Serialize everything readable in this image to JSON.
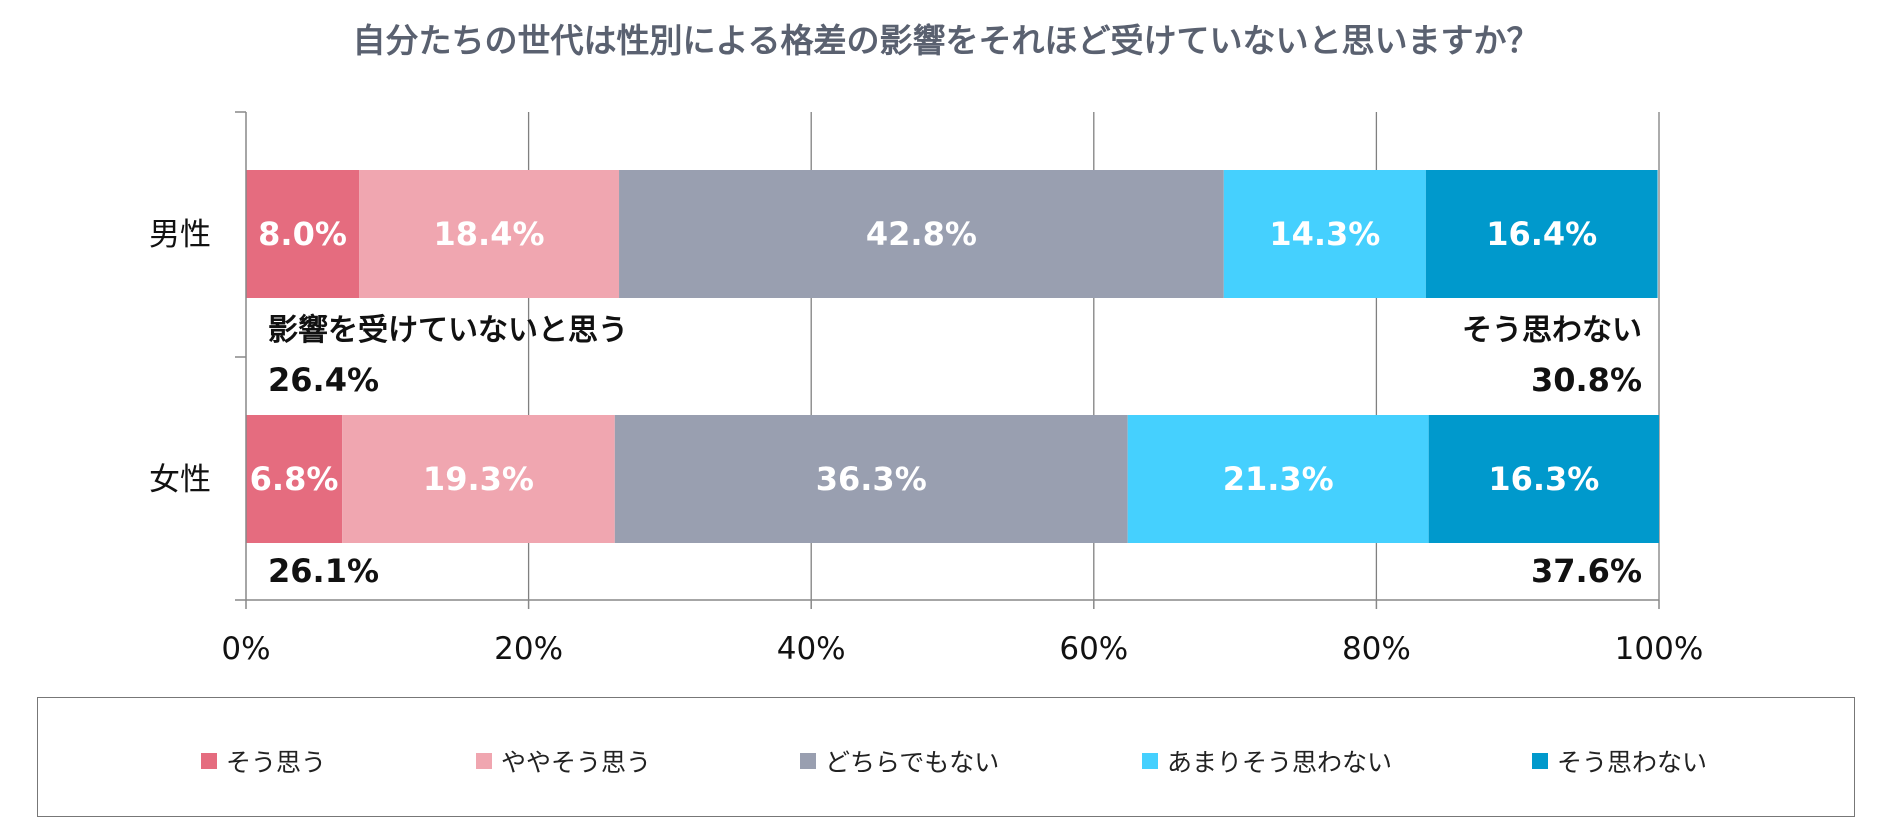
{
  "chart_data": {
    "type": "bar",
    "orientation": "horizontal",
    "stacked": true,
    "title": "自分たちの世代は性別による格差の影響をそれほど受けていないと思いますか？",
    "categories": [
      "男性",
      "女性"
    ],
    "series": [
      {
        "name": "そう思う",
        "color": "#e56c7f",
        "values": [
          8.0,
          6.8
        ],
        "labels": [
          "8.0%",
          "6.8%"
        ]
      },
      {
        "name": "ややそう思う",
        "color": "#f0a6b0",
        "values": [
          18.4,
          19.3
        ],
        "labels": [
          "18.4%",
          "19.3%"
        ]
      },
      {
        "name": "どちらでもない",
        "color": "#999fb0",
        "values": [
          42.8,
          36.3
        ],
        "labels": [
          "42.8%",
          "36.3%"
        ]
      },
      {
        "name": "あまりそう思わない",
        "color": "#45d0fe",
        "values": [
          14.3,
          21.3
        ],
        "labels": [
          "14.3%",
          "21.3%"
        ]
      },
      {
        "name": "そう思わない",
        "color": "#0099cc",
        "values": [
          16.4,
          16.3
        ],
        "labels": [
          "16.4%",
          "16.3%"
        ]
      }
    ],
    "x_ticks": [
      "0%",
      "20%",
      "40%",
      "60%",
      "80%",
      "100%"
    ],
    "xlim": [
      0,
      100
    ],
    "grid": true,
    "legend": "bottom",
    "annotations": {
      "left_heading": "影響を受けていないと思う",
      "right_heading": "そう思わない",
      "left_totals": [
        "26.4%",
        "26.1%"
      ],
      "right_totals": [
        "30.8%",
        "37.6%"
      ]
    }
  },
  "colors": {
    "title": "#5a6170",
    "axis": "#888888",
    "grid": "#808080",
    "value_label": "#ffffff",
    "annotation": "#111111"
  }
}
